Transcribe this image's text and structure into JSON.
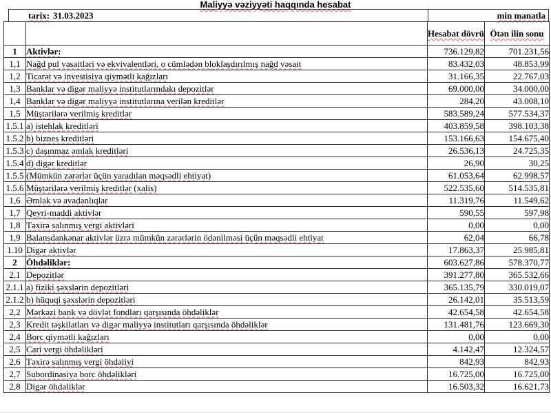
{
  "title": "Maliyyə vəziyyəti haqqında hesabat",
  "meta": {
    "date_label": "tarix:",
    "date_value": "31.03.2023",
    "unit_label": "min manatla"
  },
  "table": {
    "columns": {
      "current": "Hesabat dövrü",
      "previous": "Ötən ilin sonu"
    },
    "rows": [
      {
        "num": "1",
        "label": "Aktivlər:",
        "current": "736.129,82",
        "previous": "701.231,56",
        "bold": true
      },
      {
        "num": "1,1",
        "label": "Nağd pul vəsaitləri və  ekvivalentləri, o cümlədən bloklaşdırılmış nağd vəsait",
        "current": "83.432,03",
        "previous": "48.853,99",
        "bold": false
      },
      {
        "num": "1,2",
        "label": "Ticarət və investisiya qiymətli kağızları",
        "current": "31.166,35",
        "previous": "22.767,03",
        "bold": false
      },
      {
        "num": "1,3",
        "label": "Banklar və digər maliyyə institutlarındakı depozitlər",
        "current": "69.000,00",
        "previous": "34.000,00",
        "bold": false
      },
      {
        "num": "1,4",
        "label": "Banklar və digər maliyyə institutlarına verilən kreditlər",
        "current": "284,20",
        "previous": "43.008,10",
        "bold": false
      },
      {
        "num": "1,5",
        "label": "Müştərilərə verilmiş kreditlər",
        "current": "583.589,24",
        "previous": "577.534,37",
        "bold": false
      },
      {
        "num": "1.5.1",
        "label": "a) istehlak kreditləri",
        "current": "403.859,58",
        "previous": "398.103,38",
        "bold": false
      },
      {
        "num": "1.5.2",
        "label": "b) biznes kreditləri",
        "current": "153.166,63",
        "previous": "154.675,40",
        "bold": false
      },
      {
        "num": "1.5.3",
        "label": "c) daşınmaz əmlak kreditləri",
        "current": "26.536,13",
        "previous": "24.725,35",
        "bold": false
      },
      {
        "num": "1.5.4",
        "label": "d) digər kreditlər",
        "current": "26,90",
        "previous": "30,25",
        "bold": false
      },
      {
        "num": "1.5.5",
        "label": "(Mümkün zərərlər üçün yaradılan məqsədli ehtiyat)",
        "current": "61.053,64",
        "previous": "62.998,57",
        "bold": false
      },
      {
        "num": "1.5.6",
        "label": "Müştərilərə verilmiş kreditlər (xalis)",
        "current": "522.535,60",
        "previous": "514.535,81",
        "bold": false
      },
      {
        "num": "1,6",
        "label": "Əmlak və avadanlıqlar",
        "current": "11.319,76",
        "previous": "11.549,62",
        "bold": false
      },
      {
        "num": "1,7",
        "label": "Qeyri-maddi aktivlər",
        "current": "590,55",
        "previous": "597,98",
        "bold": false
      },
      {
        "num": "1,8",
        "label": "Təxirə salınmış vergi aktivləri",
        "current": "0,00",
        "previous": "0,00",
        "bold": false
      },
      {
        "num": "1,9",
        "label": "Balansdankənar aktivlər üzrə mümkün zərərlərin ödənilməsi üçün məqsədli ehtiyat",
        "current": "62,04",
        "previous": "66,78",
        "bold": false
      },
      {
        "num": "1.10",
        "label": "Digər aktivlər",
        "current": "17.863,37",
        "previous": "25.985,81",
        "bold": false
      },
      {
        "num": "2",
        "label": "Öhdəliklər:",
        "current": "603.627,86",
        "previous": "578.370,77",
        "bold": true
      },
      {
        "num": "2,1",
        "label": "Depozitlər",
        "current": "391.277,80",
        "previous": "365.532,66",
        "bold": false
      },
      {
        "num": "2.1.1",
        "label": "a) fiziki şəxslərin depozitləri",
        "current": "365.135,79",
        "previous": "330.019,07",
        "bold": false
      },
      {
        "num": "2.1.2",
        "label": "b) hüquqi şəxslərin depozitləri",
        "current": "26.142,01",
        "previous": "35.513,59",
        "bold": false
      },
      {
        "num": "2,2",
        "label": "Mərkəzi bank və dövlət fondları qarşısında öhdəliklər",
        "current": "42.654,58",
        "previous": "42.654,58",
        "bold": false
      },
      {
        "num": "2,3",
        "label": "Kredit təşkilatları və digər maliyyə institutları qarşısında öhdəliklər",
        "current": "131.481,76",
        "previous": "123.669,30",
        "bold": false
      },
      {
        "num": "2,4",
        "label": "Borc qiymətli kağızları",
        "current": "0,00",
        "previous": "0,00",
        "bold": false
      },
      {
        "num": "2,5",
        "label": "Cari vergi öhdəlikləri",
        "current": "4.142,47",
        "previous": "12.324,57",
        "bold": false
      },
      {
        "num": "2,6",
        "label": "Təxirə salınmış vergi öhdəliyi",
        "current": "842,93",
        "previous": "842,93",
        "bold": false
      },
      {
        "num": "2,7",
        "label": "Subordinasiya borc öhdəlikləri",
        "current": "16.725,00",
        "previous": "16.725,00",
        "bold": false
      },
      {
        "num": "2,8",
        "label": "Digər öhdəliklər",
        "current": "16.503,32",
        "previous": "16.621,73",
        "bold": false
      }
    ]
  },
  "colors": {
    "grid_line": "#2b2b2b",
    "spellcheck_underline": "#db3a3a",
    "page_bottom_edge": "#ececec",
    "background": "#ffffff",
    "text": "#000000"
  }
}
